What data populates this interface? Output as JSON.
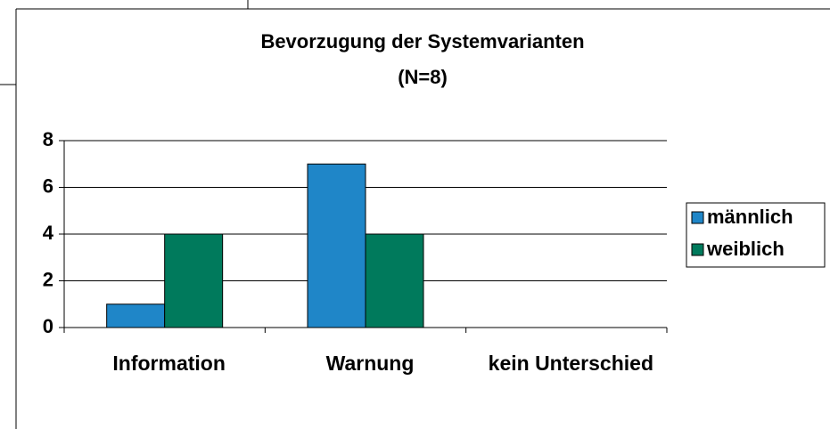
{
  "chart_data": {
    "type": "bar",
    "title": "Bevorzugung der Systemvarianten",
    "subtitle": "(N=8)",
    "categories": [
      "Information",
      "Warnung",
      "kein Unterschied"
    ],
    "series": [
      {
        "name": "männlich",
        "color": "#1f86c8",
        "values": [
          1,
          7,
          0
        ]
      },
      {
        "name": "weiblich",
        "color": "#007a5c",
        "values": [
          4,
          4,
          0
        ]
      }
    ],
    "ylim": [
      0,
      8
    ],
    "yticks": [
      0,
      2,
      4,
      6,
      8
    ],
    "grid": true,
    "legend": "right"
  }
}
